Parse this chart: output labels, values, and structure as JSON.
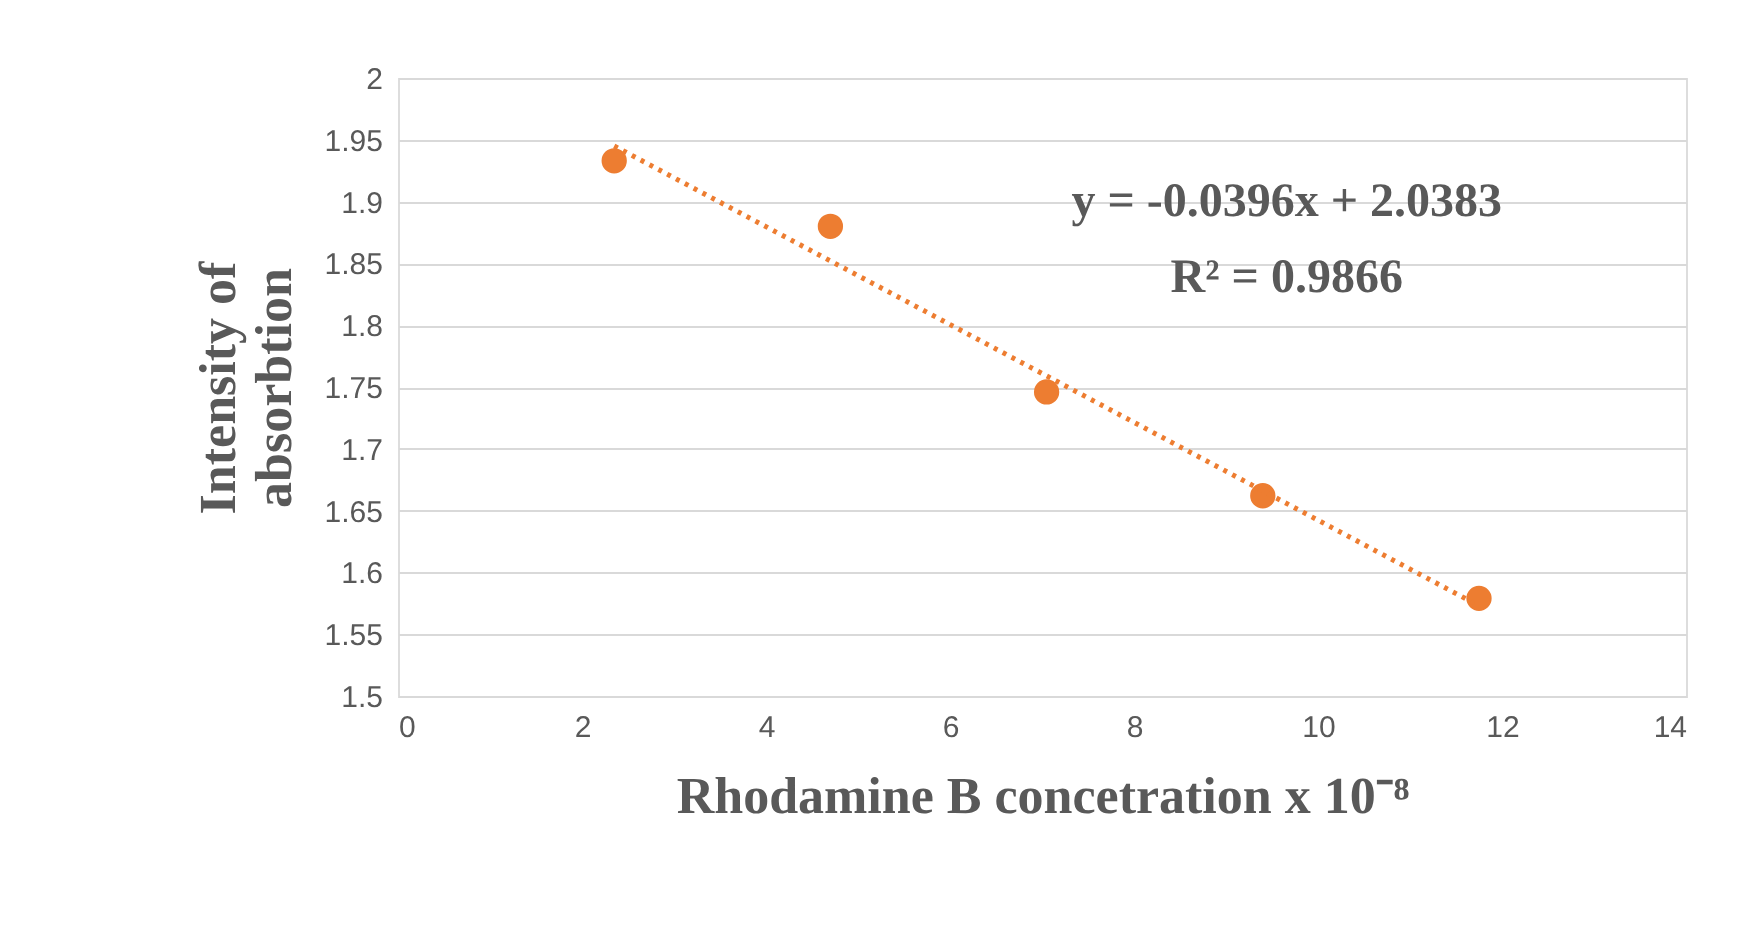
{
  "chart_data": {
    "type": "scatter",
    "xlabel": "Rhodamine B concetration x 10⁻⁸",
    "ylabel": "Intensity of absorbtion",
    "xlim": [
      0,
      14
    ],
    "xticks": [
      0,
      2,
      4,
      6,
      8,
      10,
      12,
      14
    ],
    "ylim": [
      1.5,
      2
    ],
    "yticks": [
      1.5,
      1.55,
      1.6,
      1.65,
      1.7,
      1.75,
      1.8,
      1.85,
      1.9,
      1.95,
      2
    ],
    "grid": "y",
    "series": [
      {
        "color": "#ed7d31",
        "marker": "circle",
        "x": [
          2.35,
          4.7,
          7.05,
          9.4,
          11.75
        ],
        "values": [
          1.933,
          1.88,
          1.746,
          1.662,
          1.579
        ]
      },
      {
        "type": "line",
        "color": "#ed7d31",
        "line_style": "dotted",
        "x": [
          2.35,
          11.75
        ],
        "values": [
          1.945,
          1.573
        ]
      }
    ],
    "annotations": [
      "y = -0.0396x + 2.0383",
      "R² = 0.9866"
    ]
  }
}
